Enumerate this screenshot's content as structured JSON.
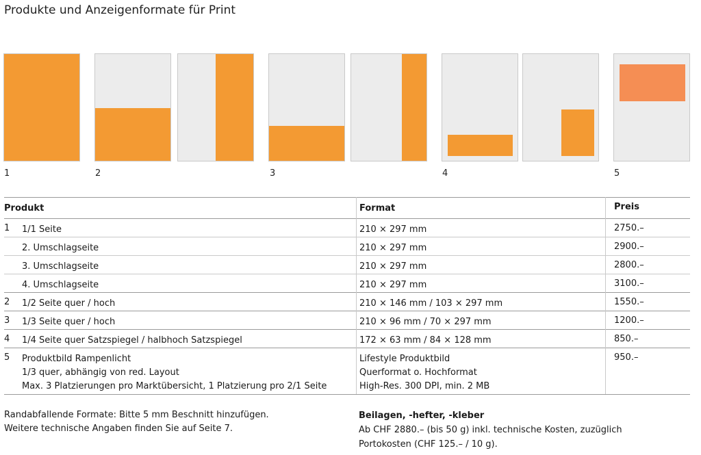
{
  "title": "Produkte und Anzeigenformate für Print",
  "figure_numbers": [
    "1",
    "2",
    "3",
    "4",
    "5"
  ],
  "table": {
    "headers": {
      "product": "Produkt",
      "format": "Format",
      "price": "Preis"
    },
    "rows": [
      {
        "num": "1",
        "product": "1/1 Seite",
        "format": "210 × 297 mm",
        "price": "2750.–"
      },
      {
        "num": "",
        "product": "2. Umschlagseite",
        "format": "210 × 297 mm",
        "price": "2900.–"
      },
      {
        "num": "",
        "product": "3. Umschlagseite",
        "format": "210 × 297 mm",
        "price": "2800.–"
      },
      {
        "num": "",
        "product": "4. Umschlagseite",
        "format": "210 × 297 mm",
        "price": "3100.–"
      },
      {
        "num": "2",
        "product": "1/2 Seite quer / hoch",
        "format": "210 × 146 mm / 103 × 297 mm",
        "price": "1550.–"
      },
      {
        "num": "3",
        "product": "1/3 Seite quer / hoch",
        "format": "210 × 96 mm / 70 × 297 mm",
        "price": "1200.–"
      },
      {
        "num": "4",
        "product": "1/4 Seite quer Satzspiegel / halbhoch Satzspiegel",
        "format": "172 × 63 mm / 84 × 128 mm",
        "price": "850.–"
      },
      {
        "num": "5",
        "product_lines": [
          "Produktbild Rampenlicht",
          "1/3 quer, abhängig von red. Layout",
          "Max. 3 Platzierungen pro Marktübersicht, 1 Platzierung pro 2/1 Seite"
        ],
        "format_lines": [
          "Lifestyle Produktbild",
          "Querformat o. Hochformat",
          "High-Res. 300 DPI, min. 2 MB"
        ],
        "price": "950.–"
      }
    ]
  },
  "footer_left": [
    "Randabfallende Formate: Bitte 5 mm Beschnitt hinzufügen.",
    "Weitere technische Angaben finden Sie auf Seite 7."
  ],
  "footer_right": {
    "heading": "Beilagen, -hefter, -kleber",
    "lines": [
      "Ab CHF 2880.– (bis 50 g) inkl. technische Kosten, zuzüglich",
      "Portokosten (CHF 125.– / 10 g)."
    ]
  },
  "colors": {
    "ad_fill": "#f39a33",
    "ad_fill_soft": "#f58e54",
    "page_bg": "#ececec"
  }
}
